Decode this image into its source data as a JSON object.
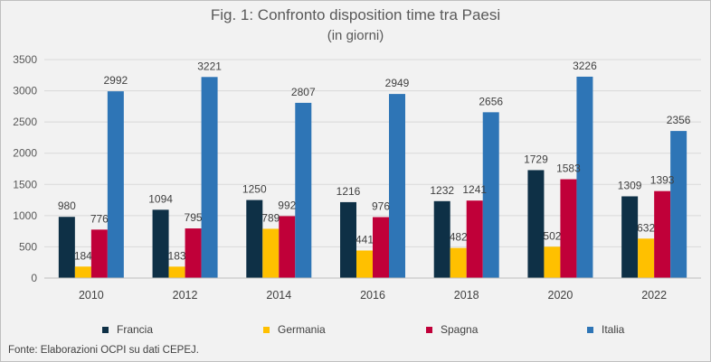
{
  "title": "Fig. 1: Confronto disposition time tra Paesi",
  "subtitle": "(in giorni)",
  "source": "Fonte: Elaborazioni OCPI su dati CEPEJ.",
  "chart_data": {
    "type": "bar",
    "categories": [
      "2010",
      "2012",
      "2014",
      "2016",
      "2018",
      "2020",
      "2022"
    ],
    "series": [
      {
        "name": "Francia",
        "color": "#0e3046",
        "values": [
          980,
          1094,
          1250,
          1216,
          1232,
          1729,
          1309
        ]
      },
      {
        "name": "Germania",
        "color": "#ffc000",
        "values": [
          184,
          183,
          789,
          441,
          482,
          502,
          632
        ]
      },
      {
        "name": "Spagna",
        "color": "#c00039",
        "values": [
          776,
          795,
          992,
          976,
          1241,
          1583,
          1393
        ]
      },
      {
        "name": "Italia",
        "color": "#2e75b6",
        "values": [
          2992,
          3221,
          2807,
          2949,
          2656,
          3226,
          2356
        ]
      }
    ],
    "ylim": [
      0,
      3500
    ],
    "yticks": [
      "0",
      "500",
      "1000",
      "1500",
      "2000",
      "2500",
      "3000",
      "3500"
    ],
    "grid": true,
    "legend_position": "bottom"
  }
}
